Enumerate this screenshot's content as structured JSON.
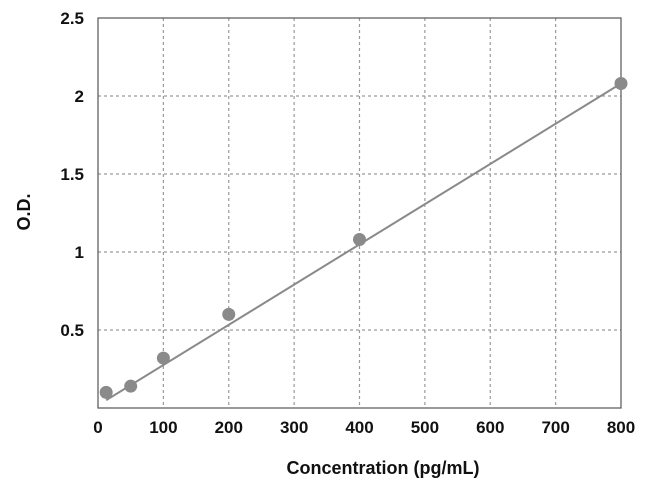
{
  "chart_data": {
    "type": "scatter",
    "title": "",
    "xlabel": "Concentration (pg/mL)",
    "ylabel": "O.D.",
    "xlim": [
      0,
      800
    ],
    "ylim": [
      0,
      2.5
    ],
    "x_ticks": [
      0,
      100,
      200,
      300,
      400,
      500,
      600,
      700,
      800
    ],
    "y_ticks": [
      0.5,
      1,
      1.5,
      2,
      2.5
    ],
    "x_tick_labels": [
      "0",
      "100",
      "200",
      "300",
      "400",
      "500",
      "600",
      "700",
      "800"
    ],
    "y_tick_labels": [
      "0.5",
      "1",
      "1.5",
      "2",
      "2.5"
    ],
    "grid": true,
    "legend": "none",
    "series": [
      {
        "x": [
          12.5,
          50,
          100,
          200,
          400,
          800
        ],
        "y": [
          0.1,
          0.14,
          0.32,
          0.6,
          1.08,
          2.08
        ],
        "color": "#8a8a8a"
      }
    ],
    "trendline": {
      "type": "linear",
      "x": [
        12.5,
        800
      ],
      "y": [
        0.05,
        2.08
      ],
      "color": "#8a8a8a"
    }
  }
}
